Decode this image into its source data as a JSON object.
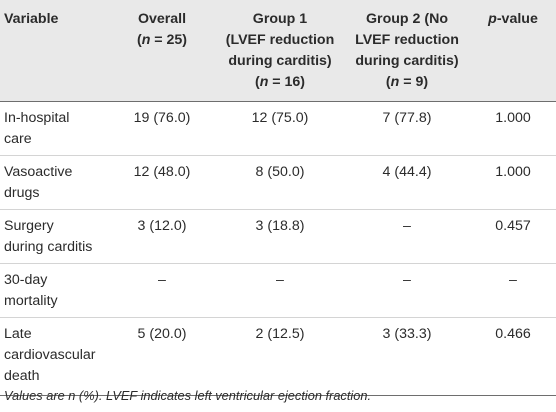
{
  "table": {
    "headers": [
      {
        "lines": [
          "Variable"
        ]
      },
      {
        "lines": [
          "Overall",
          "(n = 25)"
        ]
      },
      {
        "lines": [
          "Group 1",
          "(LVEF reduction",
          "during carditis)",
          "(n = 16)"
        ]
      },
      {
        "lines": [
          "Group 2 (No",
          "LVEF reduction",
          "during carditis)",
          "(n = 9)"
        ]
      },
      {
        "lines": [
          "p-value"
        ]
      }
    ],
    "rows": [
      {
        "variable": [
          "In-hospital",
          "care"
        ],
        "overall": "19 (76.0)",
        "group1": "12 (75.0)",
        "group2": "7 (77.8)",
        "p": "1.000"
      },
      {
        "variable": [
          "Vasoactive",
          "drugs"
        ],
        "overall": "12 (48.0)",
        "group1": "8 (50.0)",
        "group2": "4 (44.4)",
        "p": "1.000"
      },
      {
        "variable": [
          "Surgery",
          "during carditis"
        ],
        "overall": "3 (12.0)",
        "group1": "3 (18.8)",
        "group2": "–",
        "p": "0.457"
      },
      {
        "variable": [
          "30-day",
          "mortality"
        ],
        "overall": "–",
        "group1": "–",
        "group2": "–",
        "p": "–"
      },
      {
        "variable": [
          "Late",
          "cardiovascular",
          "death"
        ],
        "overall": "5 (20.0)",
        "group1": "2 (12.5)",
        "group2": "3 (33.3)",
        "p": "0.466"
      }
    ]
  },
  "footnote": "Values are n (%). LVEF indicates left ventricular ejection fraction."
}
